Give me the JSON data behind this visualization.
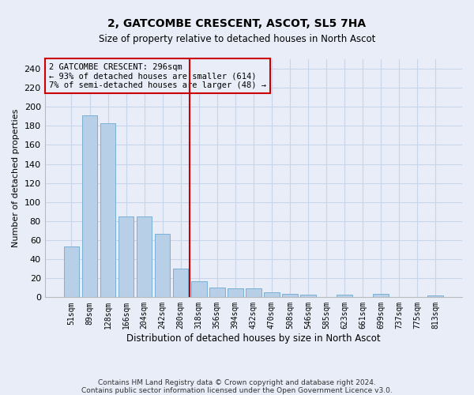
{
  "title": "2, GATCOMBE CRESCENT, ASCOT, SL5 7HA",
  "subtitle": "Size of property relative to detached houses in North Ascot",
  "xlabel": "Distribution of detached houses by size in North Ascot",
  "ylabel": "Number of detached properties",
  "categories": [
    "51sqm",
    "89sqm",
    "128sqm",
    "166sqm",
    "204sqm",
    "242sqm",
    "280sqm",
    "318sqm",
    "356sqm",
    "394sqm",
    "432sqm",
    "470sqm",
    "508sqm",
    "546sqm",
    "585sqm",
    "623sqm",
    "661sqm",
    "699sqm",
    "737sqm",
    "775sqm",
    "813sqm"
  ],
  "values": [
    53,
    191,
    183,
    85,
    85,
    67,
    30,
    17,
    10,
    9,
    9,
    5,
    4,
    3,
    0,
    3,
    0,
    4,
    0,
    0,
    2
  ],
  "bar_color": "#b8cfe8",
  "bar_edge_color": "#7aafd4",
  "vline_x": 6.5,
  "vline_color": "#cc0000",
  "annotation_box_text": "2 GATCOMBE CRESCENT: 296sqm\n← 93% of detached houses are smaller (614)\n7% of semi-detached houses are larger (48) →",
  "ylim": [
    0,
    250
  ],
  "yticks": [
    0,
    20,
    40,
    60,
    80,
    100,
    120,
    140,
    160,
    180,
    200,
    220,
    240
  ],
  "grid_color": "#c8d4e8",
  "background_color": "#e8edf8",
  "title_fontsize": 10,
  "subtitle_fontsize": 8.5,
  "footer_line1": "Contains HM Land Registry data © Crown copyright and database right 2024.",
  "footer_line2": "Contains public sector information licensed under the Open Government Licence v3.0."
}
